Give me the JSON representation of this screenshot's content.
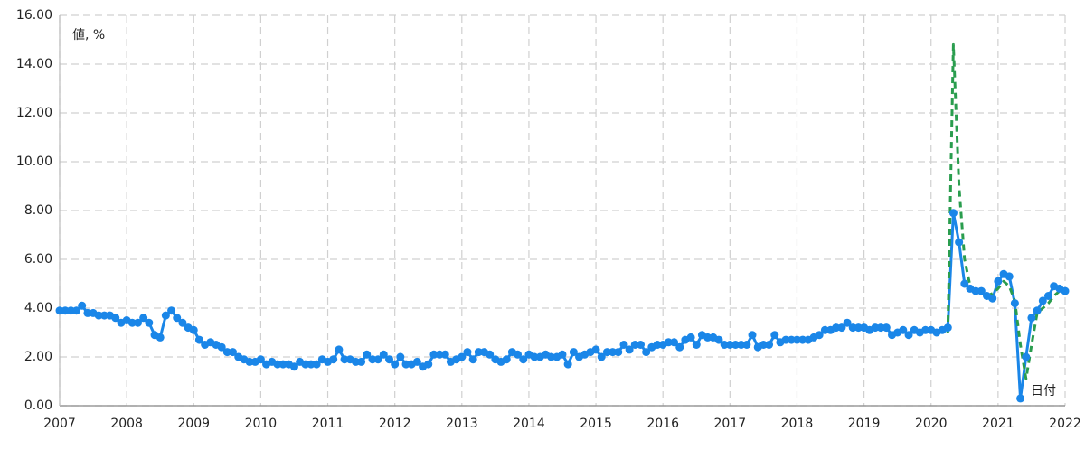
{
  "chart_data": {
    "type": "line",
    "y_label": "値, %",
    "x_label": "日付",
    "x": [
      2007,
      2007.083,
      2007.167,
      2007.25,
      2007.333,
      2007.417,
      2007.5,
      2007.583,
      2007.667,
      2007.75,
      2007.833,
      2007.917,
      2008,
      2008.083,
      2008.167,
      2008.25,
      2008.333,
      2008.417,
      2008.5,
      2008.583,
      2008.667,
      2008.75,
      2008.833,
      2008.917,
      2009,
      2009.083,
      2009.167,
      2009.25,
      2009.333,
      2009.417,
      2009.5,
      2009.583,
      2009.667,
      2009.75,
      2009.833,
      2009.917,
      2010,
      2010.083,
      2010.167,
      2010.25,
      2010.333,
      2010.417,
      2010.5,
      2010.583,
      2010.667,
      2010.75,
      2010.833,
      2010.917,
      2011,
      2011.083,
      2011.167,
      2011.25,
      2011.333,
      2011.417,
      2011.5,
      2011.583,
      2011.667,
      2011.75,
      2011.833,
      2011.917,
      2012,
      2012.083,
      2012.167,
      2012.25,
      2012.333,
      2012.417,
      2012.5,
      2012.583,
      2012.667,
      2012.75,
      2012.833,
      2012.917,
      2013,
      2013.083,
      2013.167,
      2013.25,
      2013.333,
      2013.417,
      2013.5,
      2013.583,
      2013.667,
      2013.75,
      2013.833,
      2013.917,
      2014,
      2014.083,
      2014.167,
      2014.25,
      2014.333,
      2014.417,
      2014.5,
      2014.583,
      2014.667,
      2014.75,
      2014.833,
      2014.917,
      2015,
      2015.083,
      2015.167,
      2015.25,
      2015.333,
      2015.417,
      2015.5,
      2015.583,
      2015.667,
      2015.75,
      2015.833,
      2015.917,
      2016,
      2016.083,
      2016.167,
      2016.25,
      2016.333,
      2016.417,
      2016.5,
      2016.583,
      2016.667,
      2016.75,
      2016.833,
      2016.917,
      2017,
      2017.083,
      2017.167,
      2017.25,
      2017.333,
      2017.417,
      2017.5,
      2017.583,
      2017.667,
      2017.75,
      2017.833,
      2017.917,
      2018,
      2018.083,
      2018.167,
      2018.25,
      2018.333,
      2018.417,
      2018.5,
      2018.583,
      2018.667,
      2018.75,
      2018.833,
      2018.917,
      2019,
      2019.083,
      2019.167,
      2019.25,
      2019.333,
      2019.417,
      2019.5,
      2019.583,
      2019.667,
      2019.75,
      2019.833,
      2019.917,
      2020,
      2020.083,
      2020.167,
      2020.25,
      2020.333,
      2020.417,
      2020.5,
      2020.583,
      2020.667,
      2020.75,
      2020.833,
      2020.917,
      2021,
      2021.083,
      2021.167,
      2021.25,
      2021.333,
      2021.417,
      2021.5,
      2021.583,
      2021.667,
      2021.75,
      2021.833,
      2021.917,
      2022
    ],
    "series": [
      {
        "color": "#1a86e8",
        "markers": true,
        "dashed": false,
        "values": [
          3.9,
          3.9,
          3.9,
          3.9,
          4.1,
          3.8,
          3.8,
          3.7,
          3.7,
          3.7,
          3.6,
          3.4,
          3.5,
          3.4,
          3.4,
          3.6,
          3.4,
          2.9,
          2.8,
          3.7,
          3.9,
          3.6,
          3.4,
          3.2,
          3.1,
          2.7,
          2.5,
          2.6,
          2.5,
          2.4,
          2.2,
          2.2,
          2.0,
          1.9,
          1.8,
          1.8,
          1.9,
          1.7,
          1.8,
          1.7,
          1.7,
          1.7,
          1.6,
          1.8,
          1.7,
          1.7,
          1.7,
          1.9,
          1.8,
          1.9,
          2.3,
          1.9,
          1.9,
          1.8,
          1.8,
          2.1,
          1.9,
          1.9,
          2.1,
          1.9,
          1.7,
          2.0,
          1.7,
          1.7,
          1.8,
          1.6,
          1.7,
          2.1,
          2.1,
          2.1,
          1.8,
          1.9,
          2.0,
          2.2,
          1.9,
          2.2,
          2.2,
          2.1,
          1.9,
          1.8,
          1.9,
          2.2,
          2.1,
          1.9,
          2.1,
          2.0,
          2.0,
          2.1,
          2.0,
          2.0,
          2.1,
          1.7,
          2.2,
          2.0,
          2.1,
          2.2,
          2.3,
          2.0,
          2.2,
          2.2,
          2.2,
          2.5,
          2.3,
          2.5,
          2.5,
          2.2,
          2.4,
          2.5,
          2.5,
          2.6,
          2.6,
          2.4,
          2.7,
          2.8,
          2.5,
          2.9,
          2.8,
          2.8,
          2.7,
          2.5,
          2.5,
          2.5,
          2.5,
          2.5,
          2.9,
          2.4,
          2.5,
          2.5,
          2.9,
          2.6,
          2.7,
          2.7,
          2.7,
          2.7,
          2.7,
          2.8,
          2.9,
          3.1,
          3.1,
          3.2,
          3.2,
          3.4,
          3.2,
          3.2,
          3.2,
          3.1,
          3.2,
          3.2,
          3.2,
          2.9,
          3.0,
          3.1,
          2.9,
          3.1,
          3.0,
          3.1,
          3.1,
          3.0,
          3.1,
          3.2,
          7.9,
          6.7,
          5.0,
          4.8,
          4.7,
          4.7,
          4.5,
          4.4,
          5.1,
          5.4,
          5.3,
          4.2,
          0.3,
          2.0,
          3.6,
          3.9,
          4.3,
          4.5,
          4.9,
          4.8,
          4.7
        ]
      },
      {
        "color": "#2a9d4e",
        "markers": false,
        "dashed": true,
        "values": [
          null,
          null,
          null,
          null,
          null,
          null,
          null,
          null,
          null,
          null,
          null,
          null,
          null,
          null,
          null,
          null,
          null,
          null,
          null,
          null,
          null,
          null,
          null,
          null,
          null,
          null,
          null,
          null,
          null,
          null,
          null,
          null,
          null,
          null,
          null,
          null,
          null,
          null,
          null,
          null,
          null,
          null,
          null,
          null,
          null,
          null,
          null,
          null,
          null,
          null,
          null,
          null,
          null,
          null,
          null,
          null,
          null,
          null,
          null,
          null,
          null,
          null,
          null,
          null,
          null,
          null,
          null,
          null,
          null,
          null,
          null,
          null,
          null,
          null,
          null,
          null,
          null,
          null,
          null,
          null,
          null,
          null,
          null,
          null,
          null,
          null,
          null,
          null,
          null,
          null,
          null,
          null,
          null,
          null,
          null,
          null,
          null,
          null,
          null,
          null,
          null,
          null,
          null,
          null,
          null,
          null,
          null,
          null,
          null,
          null,
          null,
          null,
          null,
          null,
          null,
          null,
          null,
          null,
          null,
          null,
          null,
          null,
          null,
          null,
          null,
          null,
          null,
          null,
          null,
          null,
          null,
          null,
          null,
          null,
          null,
          null,
          null,
          null,
          null,
          null,
          null,
          null,
          null,
          null,
          null,
          null,
          null,
          null,
          null,
          null,
          null,
          null,
          null,
          null,
          null,
          null,
          null,
          null,
          null,
          3.0,
          14.8,
          9.0,
          6.0,
          4.9,
          4.6,
          4.7,
          4.5,
          4.6,
          4.8,
          5.1,
          4.9,
          4.3,
          2.5,
          1.1,
          2.5,
          3.8,
          4.0,
          4.2,
          4.5,
          4.7,
          4.8
        ]
      }
    ],
    "xlim": [
      2007,
      2022
    ],
    "xticks": [
      2007,
      2008,
      2009,
      2010,
      2011,
      2012,
      2013,
      2014,
      2015,
      2016,
      2017,
      2018,
      2019,
      2020,
      2021,
      2022
    ],
    "ylim": [
      0,
      16
    ],
    "yticks": [
      {
        "value": 0,
        "label": "0.00"
      },
      {
        "value": 2,
        "label": "2.00"
      },
      {
        "value": 4,
        "label": "4.00"
      },
      {
        "value": 6,
        "label": "6.00"
      },
      {
        "value": 8,
        "label": "8.00"
      },
      {
        "value": 10,
        "label": "10.00"
      },
      {
        "value": 12,
        "label": "12.00"
      },
      {
        "value": 14,
        "label": "14.00"
      },
      {
        "value": 16,
        "label": "16.00"
      }
    ],
    "grid": true
  }
}
